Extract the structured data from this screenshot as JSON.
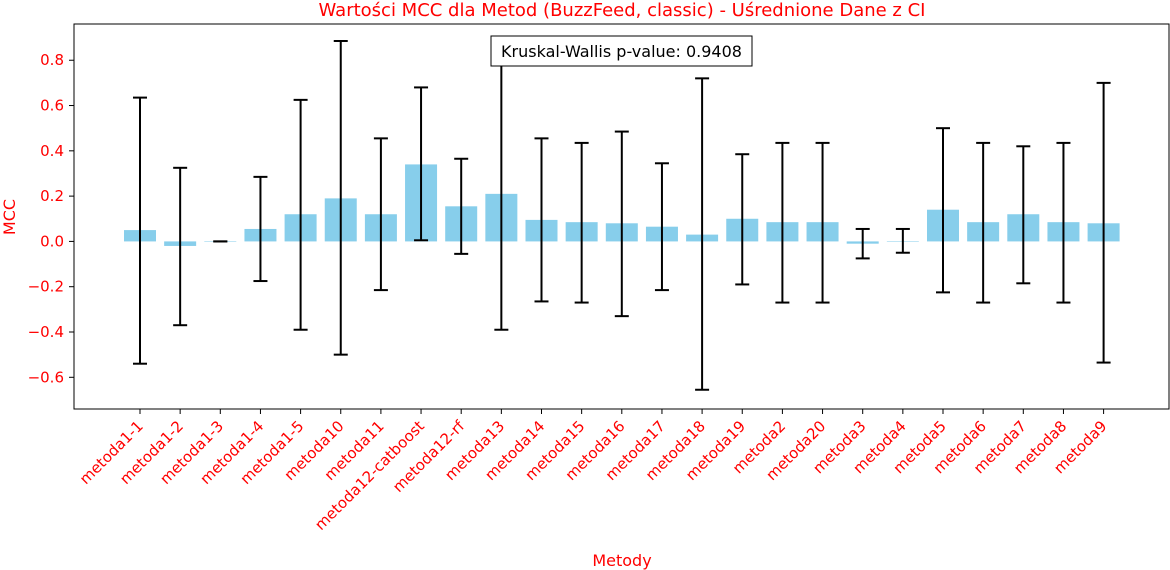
{
  "chart_data": {
    "type": "bar",
    "title": "Wartości MCC dla Metod (BuzzFeed, classic) - Uśrednione Dane z CI",
    "xlabel": "Metody",
    "ylabel": "MCC",
    "ylim": [
      -0.74,
      0.96
    ],
    "yticks": [
      -0.6,
      -0.4,
      -0.2,
      0.0,
      0.2,
      0.4,
      0.6,
      0.8
    ],
    "ytick_labels": [
      "−0.6",
      "−0.4",
      "−0.2",
      "0.0",
      "0.2",
      "0.4",
      "0.6",
      "0.8"
    ],
    "grid": false,
    "categories": [
      "metoda1-1",
      "metoda1-2",
      "metoda1-3",
      "metoda1-4",
      "metoda1-5",
      "metoda10",
      "metoda11",
      "metoda12-catboost",
      "metoda12-rf",
      "metoda13",
      "metoda14",
      "metoda15",
      "metoda16",
      "metoda17",
      "metoda18",
      "metoda19",
      "metoda2",
      "metoda20",
      "metoda3",
      "metoda4",
      "metoda5",
      "metoda6",
      "metoda7",
      "metoda8",
      "metoda9"
    ],
    "values": [
      0.05,
      -0.02,
      0.0,
      0.055,
      0.12,
      0.19,
      0.12,
      0.34,
      0.155,
      0.21,
      0.095,
      0.085,
      0.08,
      0.065,
      0.03,
      0.1,
      0.085,
      0.085,
      -0.01,
      0.0,
      0.14,
      0.085,
      0.12,
      0.085,
      0.08
    ],
    "ci_low": [
      -0.54,
      -0.37,
      0.0,
      -0.175,
      -0.39,
      -0.5,
      -0.215,
      0.005,
      -0.055,
      -0.39,
      -0.265,
      -0.27,
      -0.33,
      -0.215,
      -0.655,
      -0.19,
      -0.27,
      -0.27,
      -0.075,
      -0.05,
      -0.225,
      -0.27,
      -0.185,
      -0.27,
      -0.535
    ],
    "ci_high": [
      0.635,
      0.325,
      0.0,
      0.285,
      0.625,
      0.885,
      0.455,
      0.68,
      0.365,
      0.81,
      0.455,
      0.435,
      0.485,
      0.345,
      0.72,
      0.385,
      0.435,
      0.435,
      0.055,
      0.055,
      0.5,
      0.435,
      0.42,
      0.435,
      0.7
    ],
    "colors": {
      "bar": "#87ceeb",
      "error": "#000000",
      "label": "#ff0000",
      "axis": "#000000"
    },
    "annotation": "Kruskal-Wallis p-value: 0.9408"
  }
}
